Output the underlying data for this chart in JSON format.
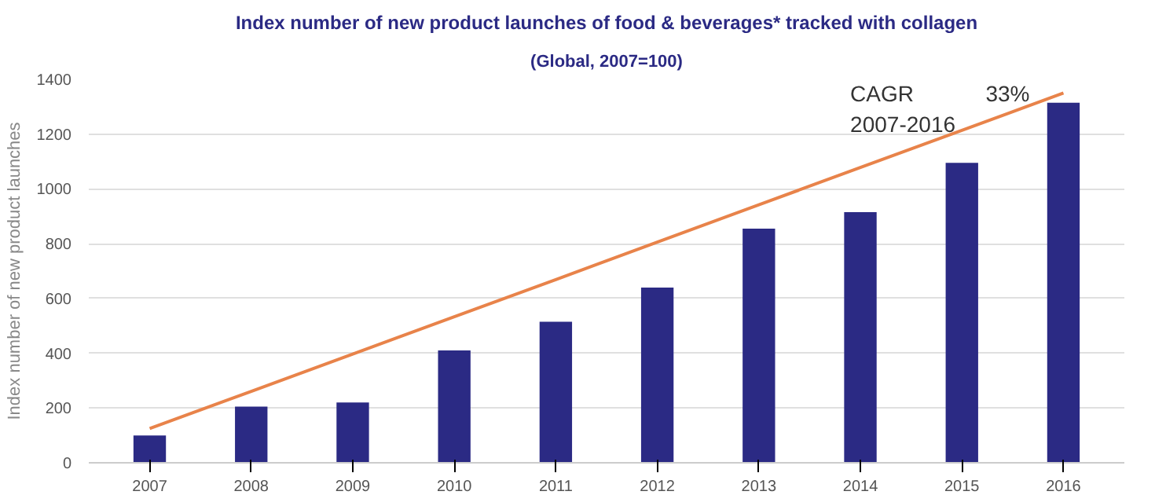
{
  "chart_data": {
    "type": "bar",
    "title": "Index number of new product launches of food & beverages* tracked with collagen",
    "subtitle": "(Global, 2007=100)",
    "ylabel": "Index number of new product launches",
    "categories": [
      "2007",
      "2008",
      "2009",
      "2010",
      "2011",
      "2012",
      "2013",
      "2014",
      "2015",
      "2016"
    ],
    "series": [
      {
        "color": "#2b2a84",
        "values": [
          100,
          205,
          220,
          410,
          515,
          640,
          855,
          915,
          1095,
          1315
        ]
      },
      {
        "type": "line",
        "color": "#e8834a",
        "values": [
          125,
          261,
          397,
          533,
          669,
          806,
          942,
          1078,
          1214,
          1350
        ]
      }
    ],
    "annotations": [
      "CAGR\n2007-2016",
      "33%"
    ],
    "ylim": [
      0,
      1400
    ],
    "yticks": [
      0,
      200,
      400,
      600,
      800,
      1000,
      1200,
      1400
    ],
    "grid": "y"
  }
}
